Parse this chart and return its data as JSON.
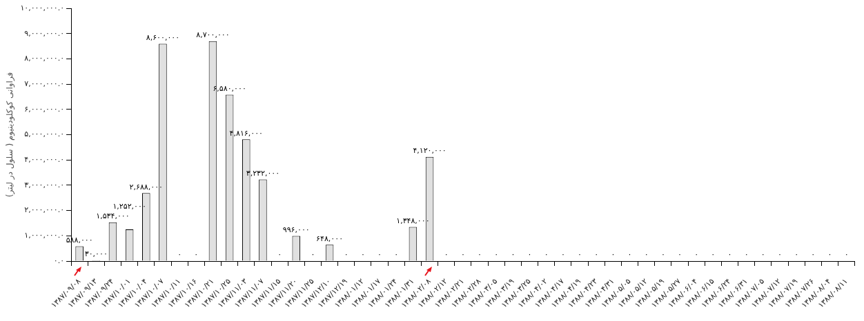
{
  "chart_data": {
    "type": "bar",
    "ylabel": "فراوانی کوکلودینیوم ( سلول در لیتر)",
    "categories": [
      "۱۳۸۷/۰۹/۰۸",
      "۱۳۸۷/۰۹/۱۳",
      "۱۳۸۷/۰۹/۲۴",
      "۱۳۸۷/۱۰/۰۱",
      "۱۳۸۷/۱۰/۰۴",
      "۱۳۸۷/۱۰/۰۷",
      "۱۳۸۷/۱۰/۱۱",
      "۱۳۸۷/۱۰/۱۶",
      "۱۳۸۷/۱۰/۲۱",
      "۱۳۸۷/۱۰/۲۵",
      "۱۳۸۷/۱۱/۰۳",
      "۱۳۸۷/۱۱/۰۷",
      "۱۳۸۷/۱۱/۱۵",
      "۱۳۸۷/۱۱/۲۰",
      "۱۳۸۷/۱۱/۲۵",
      "۱۳۸۷/۱۲/۱۰",
      "۱۳۸۷/۱۲/۱۹",
      "۱۳۸۸/۰۱/۱۲",
      "۱۳۸۸/۰۱/۱۷",
      "۱۳۸۸/۰۱/۲۴",
      "۱۳۸۸/۰۱/۳۱",
      "۱۳۸۸/۰۲/۰۸",
      "۱۳۸۸/۰۲/۱۲",
      "۱۳۸۸/۰۲/۲۱",
      "۱۳۸۸/۰۲/۲۸",
      "۱۳۸۸/۰۳/۰۵",
      "۱۳۸۸/۰۳/۱۹",
      "۱۳۸۸/۰۳/۲۵",
      "۱۳۸۸/۰۴/۰۲",
      "۱۳۸۸/۰۴/۱۷",
      "۱۳۸۸/۰۴/۱۹",
      "۱۳۸۸/۰۴/۲۳",
      "۱۳۸۸/۰۴/۳۱",
      "۱۳۸۸/۰۵/۰۵",
      "۱۳۸۸/۰۵/۱۲",
      "۱۳۸۸/۰۵/۱۹",
      "۱۳۸۸/۰۵/۲۷",
      "۱۳۸۸/۰۶/۰۴",
      "۱۳۸۸/۰۶/۱۵",
      "۱۳۸۸/۰۶/۲۴",
      "۱۳۸۸/۰۶/۳۱",
      "۱۳۸۸/۰۷/۰۵",
      "۱۳۸۸/۰۷/۱۲",
      "۱۳۸۸/۰۷/۱۹",
      "۱۳۸۸/۰۷/۲۶",
      "۱۳۸۸/۰۸/۰۴",
      "۱۳۸۸/۰۸/۱۱"
    ],
    "values": [
      588000,
      30000,
      1534000,
      1252000,
      2688000,
      8600000,
      0,
      0,
      8700000,
      6580000,
      4816000,
      3232000,
      0,
      996000,
      0,
      648000,
      0,
      0,
      0,
      0,
      1348000,
      4120000,
      0,
      0,
      0,
      0,
      0,
      0,
      0,
      0,
      0,
      0,
      0,
      0,
      0,
      0,
      0,
      0,
      0,
      0,
      0,
      0,
      0,
      0,
      0,
      0,
      0
    ],
    "value_labels": [
      "۵۸۸,۰۰۰",
      "۳۰,۰۰۰",
      "۱,۵۳۴,۰۰۰",
      "۱,۲۵۲,۰۰۰",
      "۲,۶۸۸,۰۰۰",
      "۸,۶۰۰,۰۰۰",
      "۰",
      "۰",
      "۸,۷۰۰,۰۰۰",
      "۶,۵۸۰,۰۰۰",
      "۴,۸۱۶,۰۰۰",
      "۳,۲۳۲,۰۰۰",
      "۰",
      "۹۹۶,۰۰۰",
      "۰",
      "۶۴۸,۰۰۰",
      "۰",
      "۰",
      "۰",
      "۰",
      "۱,۳۴۸,۰۰۰",
      "۴,۱۲۰,۰۰۰",
      "۰",
      "۰",
      "۰",
      "۰",
      "۰",
      "۰",
      "۰",
      "۰",
      "۰",
      "۰",
      "۰",
      "۰",
      "۰",
      "۰",
      "۰",
      "۰",
      "۰",
      "۰",
      "۰",
      "۰",
      "۰",
      "۰",
      "۰",
      "۰",
      "۰"
    ],
    "color": "#e0e0e0",
    "ylim": [
      0,
      10000000
    ],
    "yticks": [
      {
        "value": 0,
        "label": "۰.۰"
      },
      {
        "value": 1000000,
        "label": "۱,۰۰۰,۰۰۰.۰"
      },
      {
        "value": 2000000,
        "label": "۲,۰۰۰,۰۰۰.۰"
      },
      {
        "value": 3000000,
        "label": "۳,۰۰۰,۰۰۰.۰"
      },
      {
        "value": 4000000,
        "label": "۴,۰۰۰,۰۰۰.۰"
      },
      {
        "value": 5000000,
        "label": "۵,۰۰۰,۰۰۰.۰"
      },
      {
        "value": 6000000,
        "label": "۶,۰۰۰,۰۰۰.۰"
      },
      {
        "value": 7000000,
        "label": "۷,۰۰۰,۰۰۰.۰"
      },
      {
        "value": 8000000,
        "label": "۸,۰۰۰,۰۰۰.۰"
      },
      {
        "value": 9000000,
        "label": "۹,۰۰۰,۰۰۰.۰"
      },
      {
        "value": 10000000,
        "label": "۱۰,۰۰۰,۰۰۰.۰"
      }
    ],
    "grid": false,
    "legend": false
  }
}
